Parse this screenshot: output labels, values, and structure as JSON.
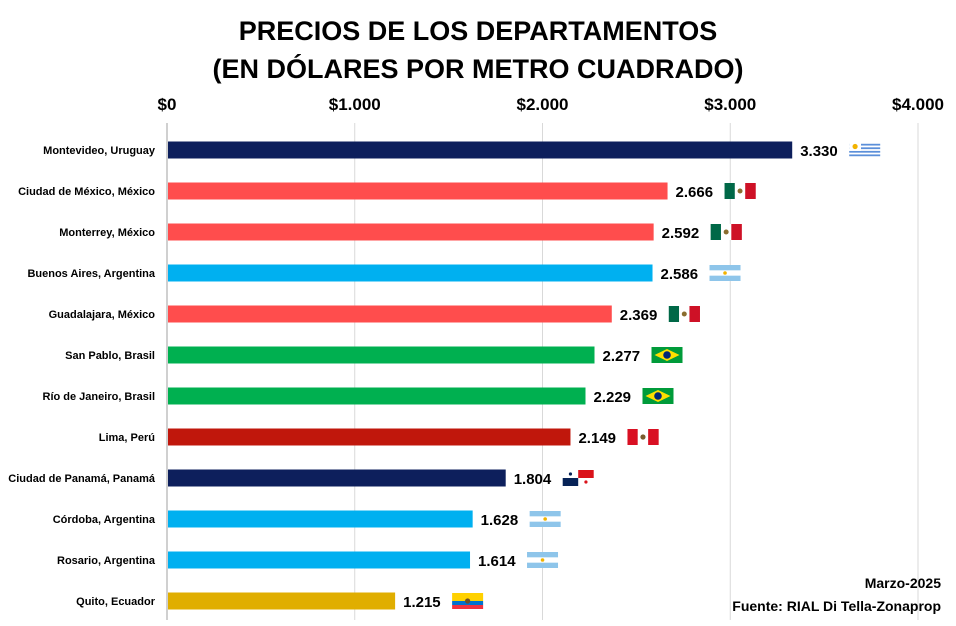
{
  "chart_data": {
    "type": "bar",
    "orientation": "horizontal",
    "title": [
      "PRECIOS DE LOS DEPARTAMENTOS",
      "(EN DÓLARES POR METRO CUADRADO)"
    ],
    "x_ticks": [
      "$0",
      "$1.000",
      "$2.000",
      "$3.000",
      "$4.000"
    ],
    "xlim": [
      0,
      4000
    ],
    "grid": "vertical",
    "categories": [
      "Montevideo, Uruguay",
      "Ciudad de México, México",
      "Monterrey, México",
      "Buenos Aires, Argentina",
      "Guadalajara, México",
      "San Pablo, Brasil",
      "Río de Janeiro, Brasil",
      "Lima, Perú",
      "Ciudad de Panamá, Panamá",
      "Córdoba, Argentina",
      "Rosario, Argentina",
      "Quito, Ecuador"
    ],
    "values": [
      3330,
      2666,
      2592,
      2586,
      2369,
      2277,
      2229,
      2149,
      1804,
      1628,
      1614,
      1215
    ],
    "value_labels": [
      "3.330",
      "2.666",
      "2.592",
      "2.586",
      "2.369",
      "2.277",
      "2.229",
      "2.149",
      "1.804",
      "1.628",
      "1.614",
      "1.215"
    ],
    "bar_colors": [
      "#0d1f5c",
      "#ff4d4d",
      "#ff4d4d",
      "#00b0f0",
      "#ff4d4d",
      "#00b050",
      "#00b050",
      "#c0170c",
      "#0d1f5c",
      "#00b0f0",
      "#00b0f0",
      "#e0ae00"
    ],
    "flag_icons": [
      "uruguay-flag-icon",
      "mexico-flag-icon",
      "mexico-flag-icon",
      "argentina-flag-icon",
      "mexico-flag-icon",
      "brazil-flag-icon",
      "brazil-flag-icon",
      "peru-flag-icon",
      "panama-flag-icon",
      "argentina-flag-icon",
      "argentina-flag-icon",
      "ecuador-flag-icon"
    ]
  },
  "footer": {
    "date": "Marzo-2025",
    "source": "Fuente: RIAL Di Tella-Zonaprop"
  }
}
